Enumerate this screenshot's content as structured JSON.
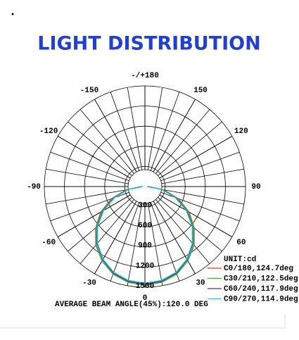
{
  "chart_data": {
    "type": "polar",
    "title": "LIGHT DISTRIBUTION",
    "footnote": "AVERAGE BEAM ANGLE(45%):120.0 DEG",
    "unit": "UNIT:cd",
    "theta": [
      -90,
      -80,
      -70,
      -60,
      -50,
      -40,
      -30,
      -20,
      -10,
      0,
      10,
      20,
      30,
      40,
      50,
      60,
      70,
      80,
      90
    ],
    "series": [
      {
        "name": "C0/180,124.7deg",
        "color": "#e03a20",
        "values": [
          60,
          290,
          530,
          760,
          960,
          1140,
          1280,
          1380,
          1440,
          1460,
          1440,
          1380,
          1280,
          1140,
          960,
          760,
          530,
          290,
          60
        ]
      },
      {
        "name": "C30/210,122.5deg",
        "color": "#22c022",
        "values": [
          50,
          270,
          510,
          740,
          950,
          1130,
          1280,
          1390,
          1450,
          1470,
          1450,
          1390,
          1280,
          1130,
          950,
          740,
          510,
          270,
          50
        ]
      },
      {
        "name": "C60/240,117.9deg",
        "color": "#3030e0",
        "values": [
          40,
          260,
          490,
          720,
          930,
          1110,
          1260,
          1370,
          1430,
          1450,
          1430,
          1370,
          1260,
          1110,
          930,
          720,
          490,
          260,
          40
        ]
      },
      {
        "name": "C90/270,114.9deg",
        "color": "#20c0e0",
        "values": [
          30,
          250,
          480,
          710,
          920,
          1100,
          1250,
          1360,
          1420,
          1440,
          1420,
          1360,
          1250,
          1100,
          920,
          710,
          480,
          250,
          30
        ]
      }
    ],
    "rlim": [
      0,
      1500
    ],
    "rticks": [
      300,
      600,
      900,
      1200,
      1500
    ],
    "thetaticks": [
      0,
      30,
      60,
      90,
      120,
      150,
      {
        "value": 180,
        "label": "-/+180"
      },
      -150,
      -120,
      -90,
      -60,
      -30
    ],
    "legend": "lower right"
  }
}
